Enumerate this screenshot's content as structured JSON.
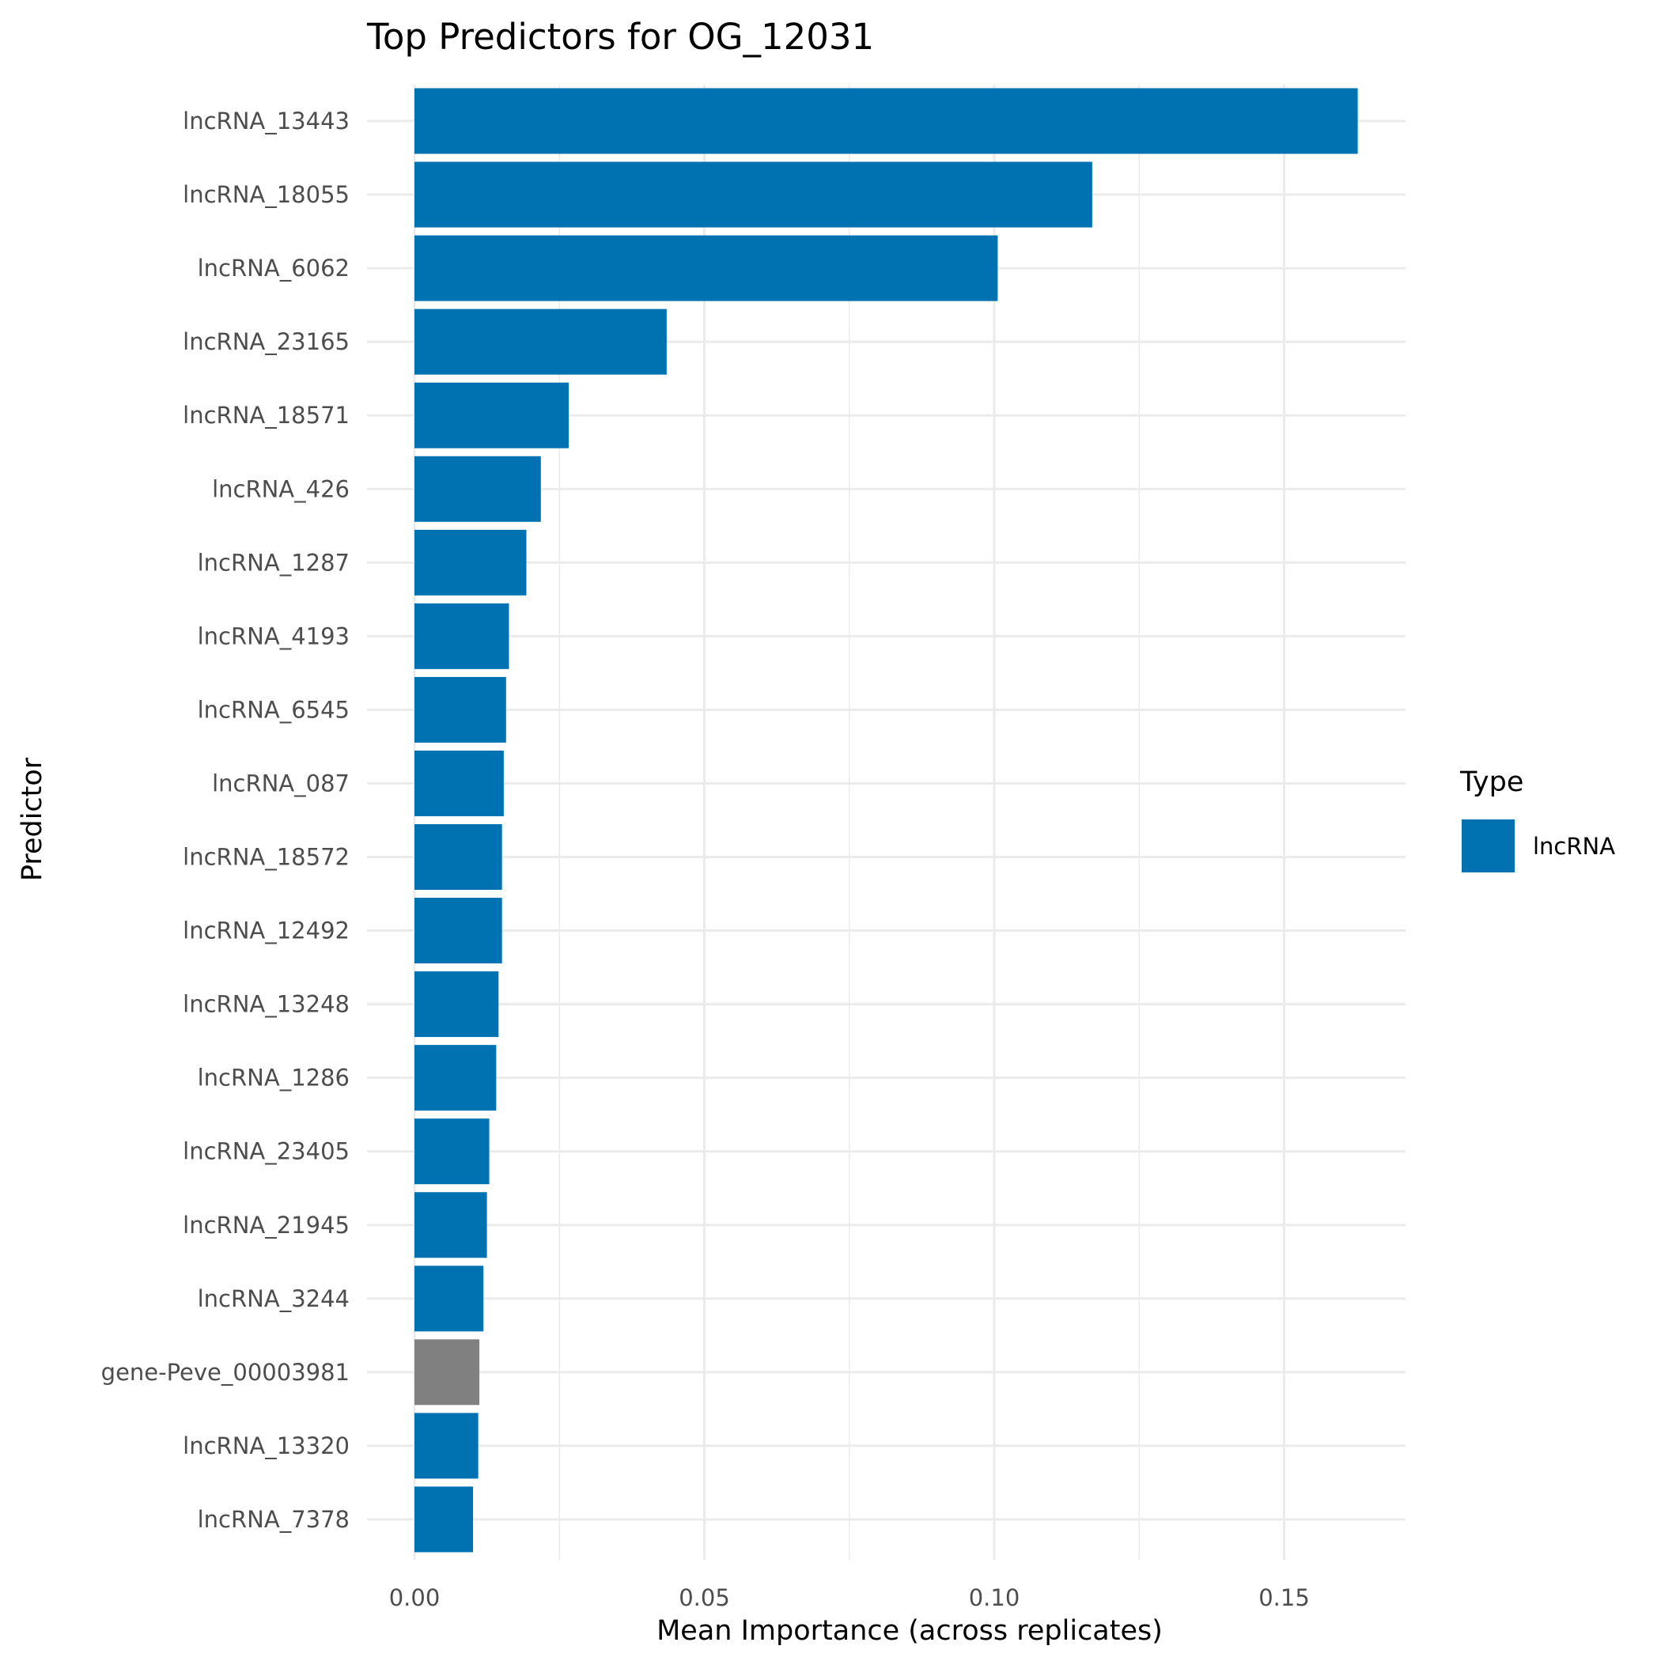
{
  "chart_data": {
    "type": "bar",
    "orientation": "horizontal",
    "title": "Top Predictors for OG_12031",
    "xlabel": "Mean Importance (across replicates)",
    "ylabel": "Predictor",
    "xlim": [
      0,
      0.17
    ],
    "xticks": [
      "0.00",
      "0.05",
      "0.10",
      "0.15"
    ],
    "grid": true,
    "legend": {
      "title": "Type",
      "position": "right",
      "entries": [
        {
          "label": "lncRNA",
          "color": "#0072B2"
        }
      ]
    },
    "categories": [
      "lncRNA_13443",
      "lncRNA_18055",
      "lncRNA_6062",
      "lncRNA_23165",
      "lncRNA_18571",
      "lncRNA_426",
      "lncRNA_1287",
      "lncRNA_4193",
      "lncRNA_6545",
      "lncRNA_087",
      "lncRNA_18572",
      "lncRNA_12492",
      "lncRNA_13248",
      "lncRNA_1286",
      "lncRNA_23405",
      "lncRNA_21945",
      "lncRNA_3244",
      "gene-Peve_00003981",
      "lncRNA_13320",
      "lncRNA_7378"
    ],
    "values": [
      0.1627,
      0.1169,
      0.1006,
      0.0435,
      0.0266,
      0.0218,
      0.0193,
      0.0163,
      0.0158,
      0.0154,
      0.0151,
      0.0151,
      0.0145,
      0.0141,
      0.0129,
      0.0125,
      0.0119,
      0.0112,
      0.011,
      0.0101
    ],
    "colors": [
      "#0072B2",
      "#0072B2",
      "#0072B2",
      "#0072B2",
      "#0072B2",
      "#0072B2",
      "#0072B2",
      "#0072B2",
      "#0072B2",
      "#0072B2",
      "#0072B2",
      "#0072B2",
      "#0072B2",
      "#0072B2",
      "#0072B2",
      "#0072B2",
      "#0072B2",
      "#808080",
      "#0072B2",
      "#0072B2"
    ]
  }
}
